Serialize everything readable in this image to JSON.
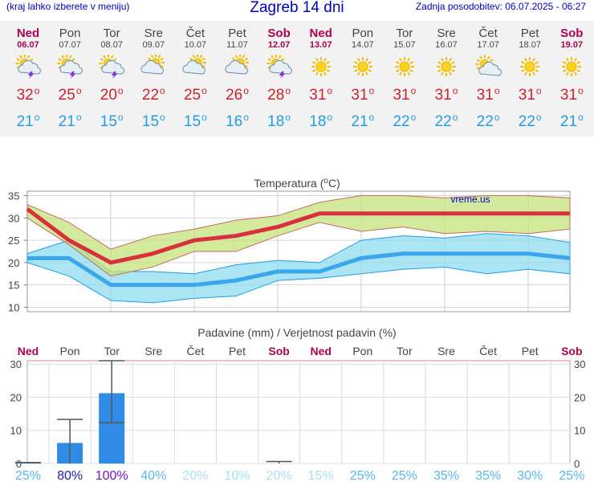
{
  "header": {
    "menu_hint": "(kraj lahko izberete v meniju)",
    "title": "Zagreb 14 dni",
    "updated": "Zadnja posodobitev: 06.07.2025 - 06:27"
  },
  "days": [
    {
      "name": "Ned",
      "date": "06.07",
      "weekend": true,
      "icon": "sun-cloud-thunder-icon",
      "tmax": "32",
      "tmin": "21"
    },
    {
      "name": "Pon",
      "date": "07.07",
      "weekend": false,
      "icon": "sun-cloud-thunder-icon",
      "tmax": "25",
      "tmin": "21"
    },
    {
      "name": "Tor",
      "date": "08.07",
      "weekend": false,
      "icon": "sun-cloud-thunder-icon",
      "tmax": "20",
      "tmin": "15"
    },
    {
      "name": "Sre",
      "date": "09.07",
      "weekend": false,
      "icon": "cloudy-icon",
      "tmax": "22",
      "tmin": "15"
    },
    {
      "name": "Čet",
      "date": "10.07",
      "weekend": false,
      "icon": "cloudy-icon",
      "tmax": "25",
      "tmin": "15"
    },
    {
      "name": "Pet",
      "date": "11.07",
      "weekend": false,
      "icon": "cloudy-icon",
      "tmax": "26",
      "tmin": "16"
    },
    {
      "name": "Sob",
      "date": "12.07",
      "weekend": true,
      "icon": "sun-cloud-thunder-icon",
      "tmax": "28",
      "tmin": "18"
    },
    {
      "name": "Ned",
      "date": "13.07",
      "weekend": true,
      "icon": "sun-icon",
      "tmax": "31",
      "tmin": "18"
    },
    {
      "name": "Pon",
      "date": "14.07",
      "weekend": false,
      "icon": "sun-icon",
      "tmax": "31",
      "tmin": "21"
    },
    {
      "name": "Tor",
      "date": "15.07",
      "weekend": false,
      "icon": "sun-icon",
      "tmax": "31",
      "tmin": "22"
    },
    {
      "name": "Sre",
      "date": "16.07",
      "weekend": false,
      "icon": "sun-icon",
      "tmax": "31",
      "tmin": "22"
    },
    {
      "name": "Čet",
      "date": "17.07",
      "weekend": false,
      "icon": "sun-cloud-icon",
      "tmax": "31",
      "tmin": "22"
    },
    {
      "name": "Pet",
      "date": "18.07",
      "weekend": false,
      "icon": "sun-icon",
      "tmax": "31",
      "tmin": "22"
    },
    {
      "name": "Sob",
      "date": "19.07",
      "weekend": true,
      "icon": "sun-icon",
      "tmax": "31",
      "tmin": "21"
    }
  ],
  "degree_sign": "o",
  "colors": {
    "max": "#d0202a",
    "min": "#1e9ee6",
    "weekend": "#b00050",
    "bar": "#2f8be6",
    "max_band": "#c4e27a",
    "min_band": "#8fdcf0"
  },
  "chart_data": [
    {
      "type": "line",
      "title": "Temperatura (",
      "title_unit": "C)",
      "watermark": "vreme.us",
      "ylim": [
        9,
        36
      ],
      "yticks": [
        10,
        15,
        20,
        25,
        30,
        35
      ],
      "grid": true,
      "categories": [
        "06.07",
        "07.07",
        "08.07",
        "09.07",
        "10.07",
        "11.07",
        "12.07",
        "13.07",
        "14.07",
        "15.07",
        "16.07",
        "17.07",
        "18.07",
        "19.07"
      ],
      "series": [
        {
          "role": "max",
          "values": [
            32,
            25,
            20,
            22,
            25,
            26,
            28,
            31,
            31,
            31,
            31,
            31,
            31,
            31
          ]
        },
        {
          "role": "max_range_high",
          "values": [
            33,
            29,
            23,
            26,
            27.5,
            29.5,
            30.5,
            33.5,
            35,
            35,
            34.5,
            35,
            35,
            34.5
          ]
        },
        {
          "role": "max_range_low",
          "values": [
            30,
            24,
            17,
            19,
            22.5,
            22.5,
            26,
            29,
            27,
            28,
            26.5,
            27,
            26.5,
            27.5
          ]
        },
        {
          "role": "min",
          "values": [
            21,
            21,
            15,
            15,
            15,
            16,
            18,
            18,
            21,
            22,
            22,
            22,
            22,
            21
          ]
        },
        {
          "role": "min_range_high",
          "values": [
            22,
            25,
            18,
            18,
            17.5,
            19.5,
            20.5,
            20,
            25,
            26,
            25.5,
            26.5,
            26,
            24.5
          ]
        },
        {
          "role": "min_range_low",
          "values": [
            20,
            17,
            11.5,
            11,
            12,
            12.5,
            16,
            16.5,
            17.5,
            18.5,
            19,
            17.5,
            18.5,
            17.5
          ]
        }
      ]
    },
    {
      "type": "bar",
      "title": "Padavine (mm) / Verjetnost padavin (%)",
      "ylim": [
        0,
        31
      ],
      "yticks": [
        0,
        10,
        20,
        30
      ],
      "grid": true,
      "categories": [
        "Ned",
        "Pon",
        "Tor",
        "Sre",
        "Čet",
        "Pet",
        "Sob",
        "Ned",
        "Pon",
        "Tor",
        "Sre",
        "Čet",
        "Pet",
        "Sob"
      ],
      "weekend": [
        true,
        false,
        false,
        false,
        false,
        false,
        true,
        true,
        false,
        false,
        false,
        false,
        false,
        true
      ],
      "values": [
        0.3,
        6.2,
        21.2,
        0,
        0,
        0,
        0,
        0,
        0,
        0,
        0,
        0,
        0,
        0
      ],
      "error_high": [
        0.3,
        13.3,
        31,
        0,
        0,
        0,
        0.6,
        0,
        0,
        0,
        0,
        0,
        0,
        0
      ],
      "error_low": [
        0,
        0,
        12.3,
        0,
        0,
        0,
        0,
        0,
        0,
        0,
        0,
        0,
        0,
        0
      ],
      "probabilities": [
        "25%",
        "80%",
        "100%",
        "40%",
        "20%",
        "10%",
        "20%",
        "15%",
        "25%",
        "25%",
        "35%",
        "35%",
        "30%",
        "25%"
      ],
      "probability_colors": [
        "#5ab8ee",
        "#1c1ca8",
        "#7a14c8",
        "#5ab8ee",
        "#a8dff8",
        "#a8dff8",
        "#a8dff8",
        "#a8dff8",
        "#5ab8ee",
        "#5ab8ee",
        "#5ab8ee",
        "#5ab8ee",
        "#5ab8ee",
        "#5ab8ee"
      ]
    }
  ]
}
